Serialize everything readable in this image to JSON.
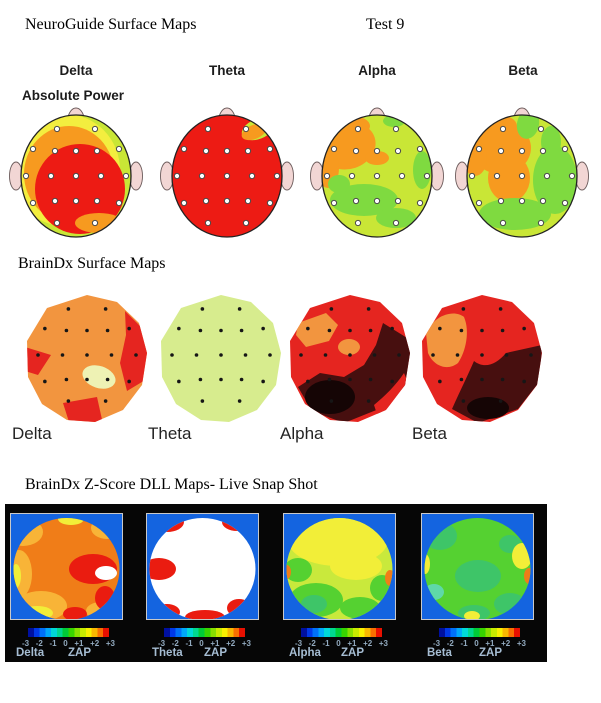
{
  "neuroguide": {
    "title": "NeuroGuide Surface Maps",
    "test_label": "Test 9",
    "measure_label": "Absolute Power",
    "bands": [
      "Delta",
      "Theta",
      "Alpha",
      "Beta"
    ]
  },
  "braindx_surface": {
    "title": "BrainDx Surface Maps",
    "bands": [
      "Delta",
      "Theta",
      "Alpha",
      "Beta"
    ]
  },
  "braindx_zscore": {
    "title": "BrainDx Z-Score DLL Maps- Live Snap Shot",
    "bands": [
      "Delta",
      "Theta",
      "Alpha",
      "Beta"
    ],
    "scale_label": "ZAP",
    "ticks": [
      "-3",
      "-2",
      "-1",
      "0",
      "+1",
      "+2",
      "+3"
    ]
  },
  "colors": {
    "ng_red": "#ed1b14",
    "ng_orange": "#f79a1f",
    "ng_yellow": "#f3ee3f",
    "ng_yellowgreen": "#c9e636",
    "ng_green": "#7fda40",
    "skin": "#f2d6d4",
    "bx_orange": "#f2953f",
    "bx_red": "#e52520",
    "bx_cream": "#eef2b4",
    "bx_palelime": "#d7ec8e",
    "bx_maroon": "#470f0f",
    "bx_black": "#150505",
    "z_blue": "#1464e0",
    "z_orange": "#f07d18",
    "z_lightorange": "#f8b437",
    "z_yellow": "#f2ee38",
    "z_red": "#ea1c10",
    "z_white": "#ffffff",
    "z_yellowgreen": "#c9e93c",
    "z_green": "#55d131",
    "z_green2": "#3ec568",
    "z_teal": "#5fd8a8"
  },
  "colorbar_segments": [
    "#0010a0",
    "#0038e8",
    "#0070f8",
    "#00a8f8",
    "#00d8d8",
    "#00d890",
    "#00cc38",
    "#38d400",
    "#88e000",
    "#c8ec00",
    "#f8f000",
    "#f8b800",
    "#f87000",
    "#e81000"
  ]
}
